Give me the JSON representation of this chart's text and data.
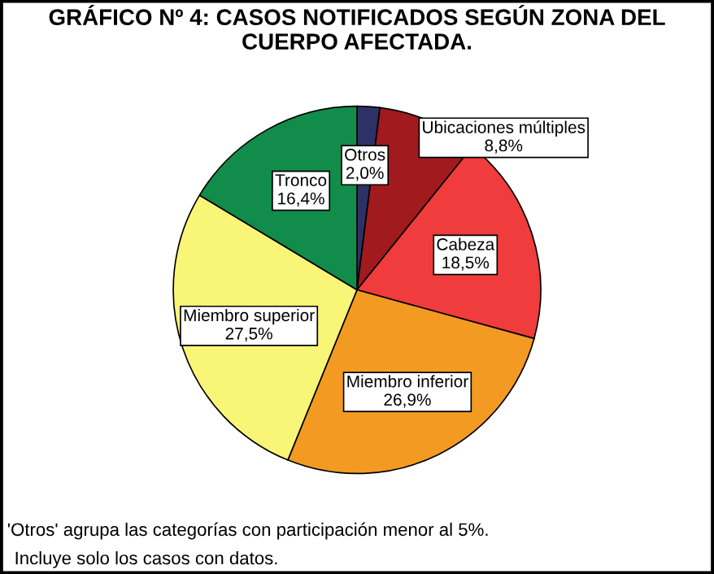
{
  "chart_data": {
    "type": "pie",
    "title": "GRÁFICO Nº 4: CASOS NOTIFICADOS SEGÚN ZONA DEL CUERPO AFECTADA.",
    "categories": [
      "Otros",
      "Ubicaciones múltiples",
      "Cabeza",
      "Miembro inferior",
      "Miembro superior",
      "Tronco"
    ],
    "values": [
      2.0,
      8.8,
      18.5,
      26.9,
      27.5,
      16.4
    ],
    "value_labels": [
      "2,0%",
      "8,8%",
      "18,5%",
      "26,9%",
      "27,5%",
      "16,4%"
    ],
    "colors": [
      "#2e3166",
      "#a01a1e",
      "#f03c3c",
      "#f39a22",
      "#f9f577",
      "#128c4a"
    ],
    "annotations": [
      "'Otros' agrupa las categorías con participación menor al 5%.",
      "Incluye solo los casos con datos."
    ],
    "legend": false
  }
}
